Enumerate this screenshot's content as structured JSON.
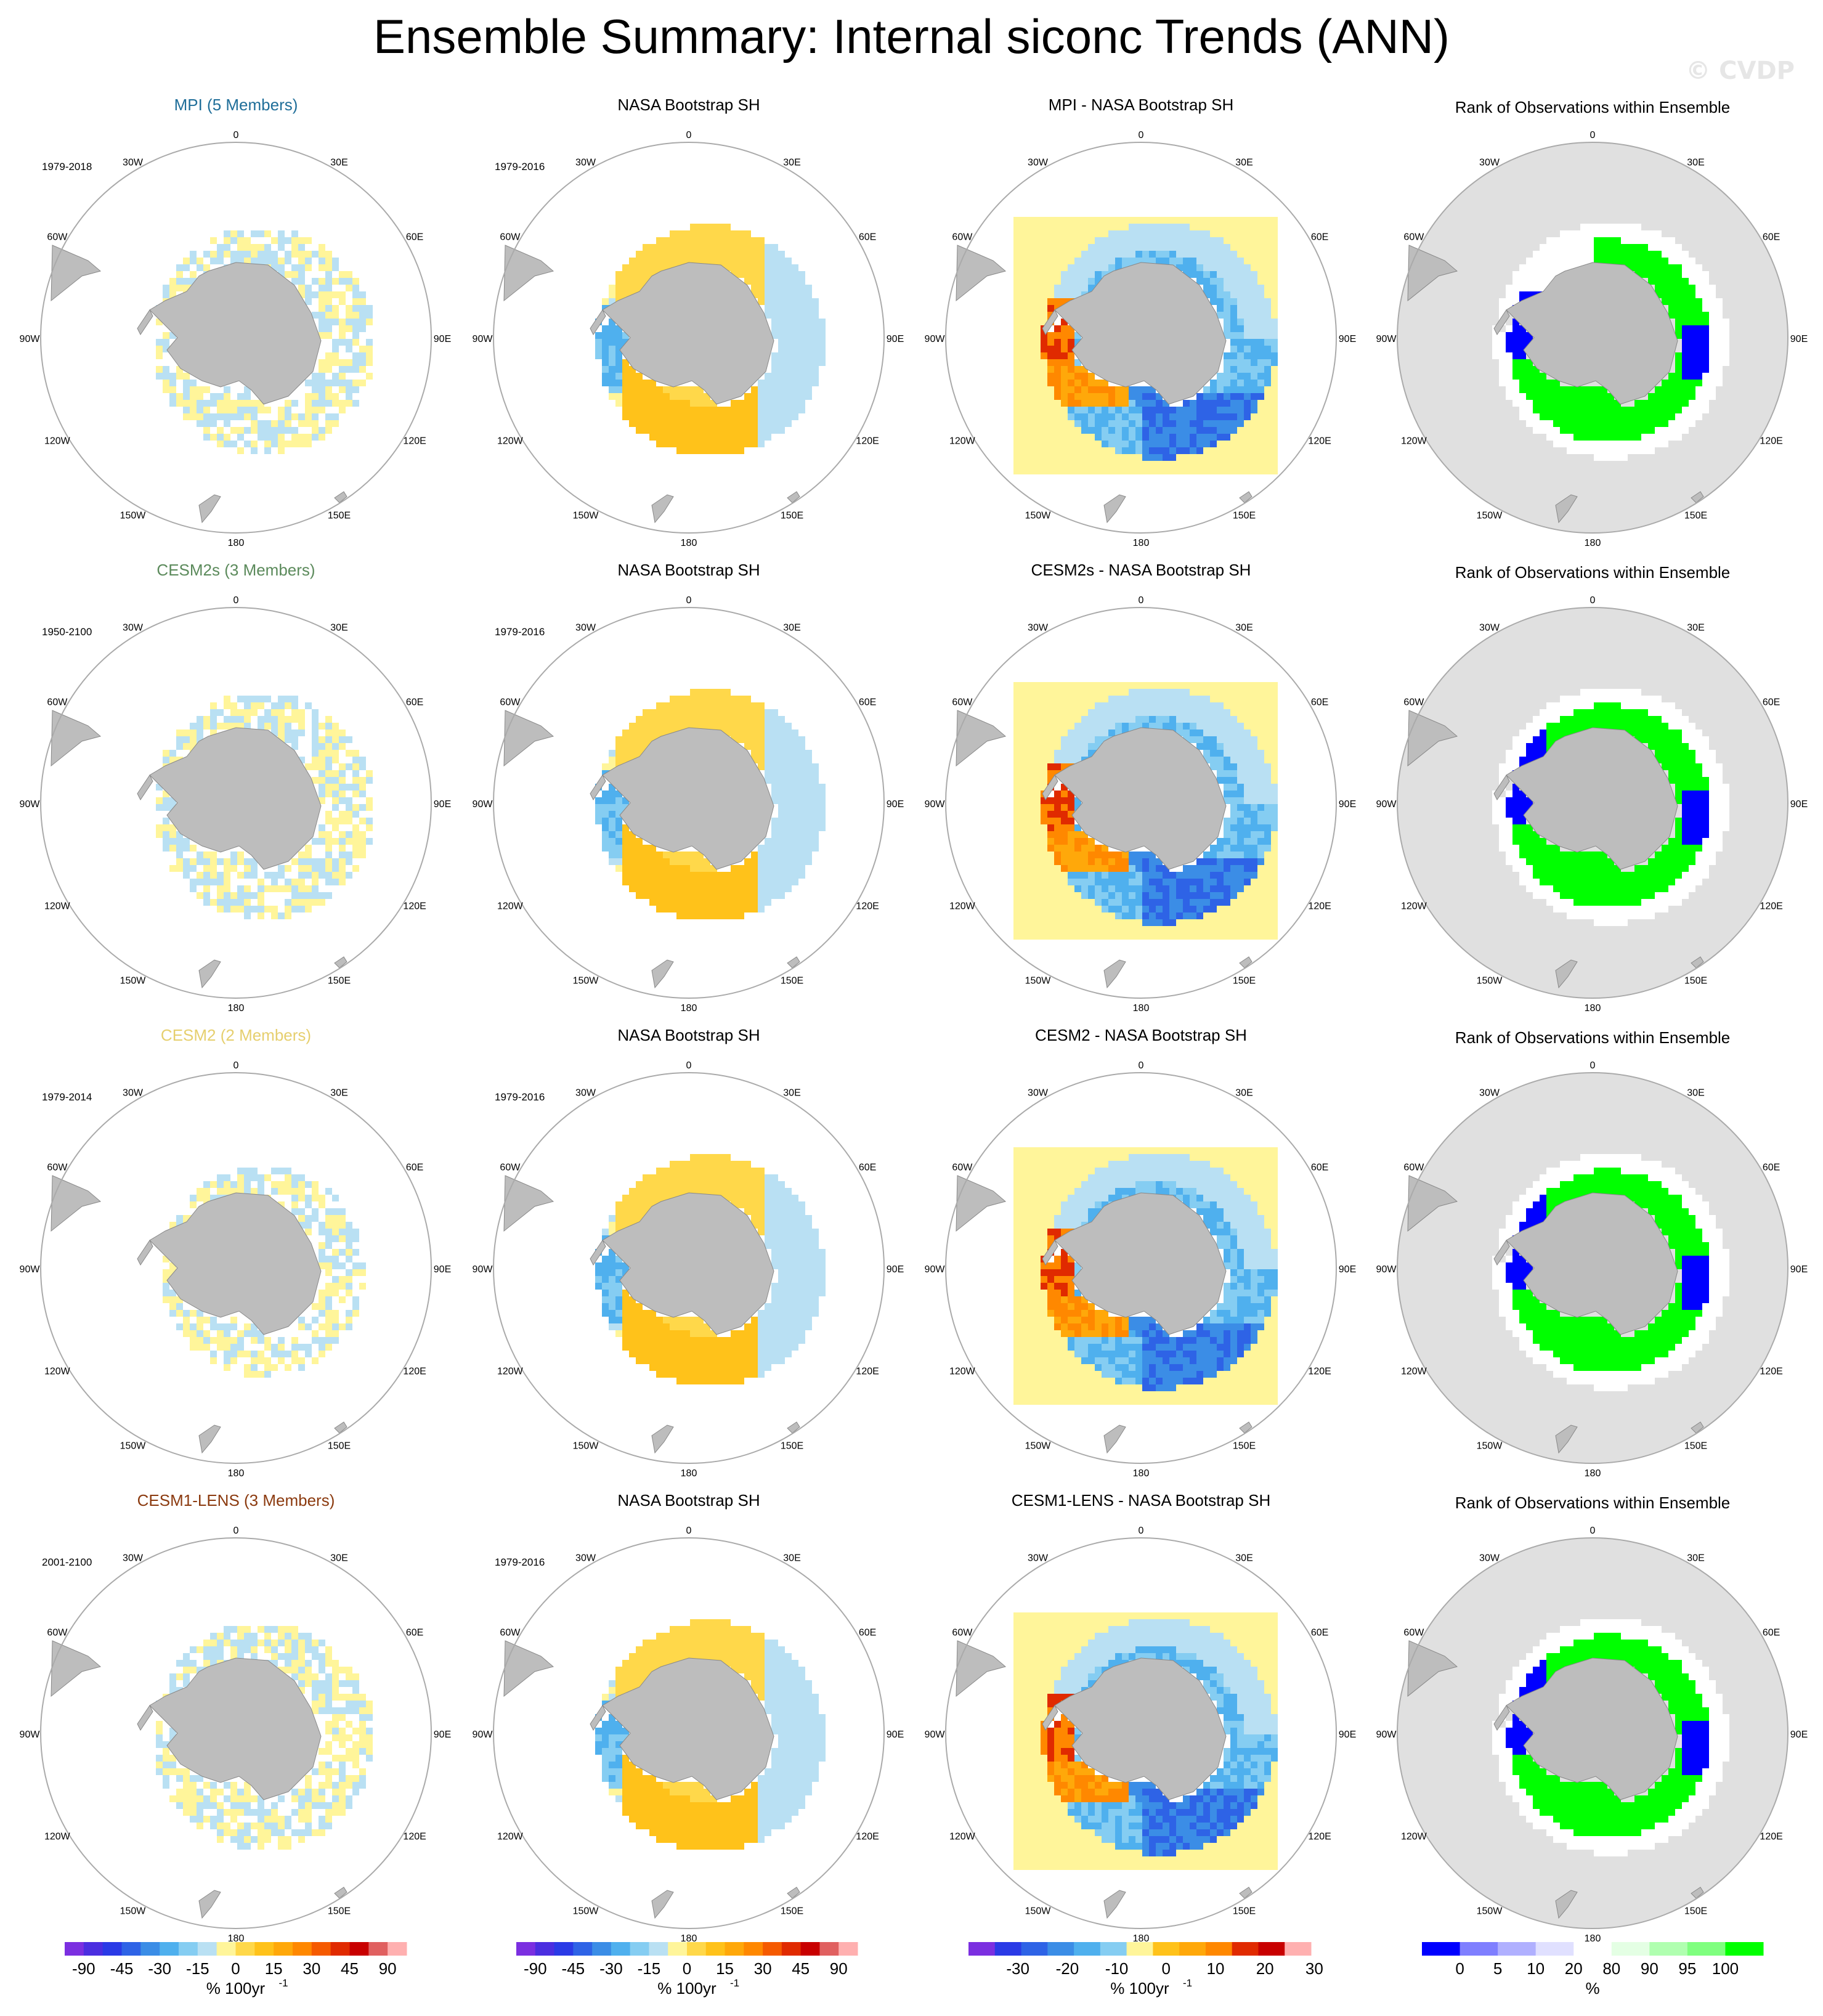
{
  "figure": {
    "title": "Ensemble Summary: Internal siconc Trends (ANN)",
    "watermark": "© CVDP"
  },
  "colors": {
    "land": "#bdbdbd",
    "circle": "#aaaaaa",
    "rank_background": "#e0e0e0",
    "model_title_colors": [
      "#1f6e99",
      "#5b8a5b",
      "#e6cf6e",
      "#8b3a0f"
    ]
  },
  "map_labels": {
    "lon": [
      "0",
      "30E",
      "60E",
      "90E",
      "120E",
      "150E",
      "180",
      "150W",
      "120W",
      "90W",
      "60W",
      "30W"
    ]
  },
  "chart_data": {
    "type": "heatmap",
    "projection": "south-polar-stereographic",
    "variable": "siconc",
    "season": "ANN",
    "rows": [
      {
        "model_title": "MPI (5 Members)",
        "model_years": "1979-2018",
        "obs_title": "NASA Bootstrap SH",
        "obs_years": "1979-2016",
        "diff_title": "MPI - NASA Bootstrap SH",
        "rank_title": "Rank of Observations within Ensemble"
      },
      {
        "model_title": "CESM2s (3 Members)",
        "model_years": "1950-2100",
        "obs_title": "NASA Bootstrap SH",
        "obs_years": "1979-2016",
        "diff_title": "CESM2s - NASA Bootstrap SH",
        "rank_title": "Rank of Observations within Ensemble"
      },
      {
        "model_title": "CESM2 (2 Members)",
        "model_years": "1979-2014",
        "obs_title": "NASA Bootstrap SH",
        "obs_years": "1979-2016",
        "diff_title": "CESM2 - NASA Bootstrap SH",
        "rank_title": "Rank of Observations within Ensemble"
      },
      {
        "model_title": "CESM1-LENS (3 Members)",
        "model_years": "2001-2100",
        "obs_title": "NASA Bootstrap SH",
        "obs_years": "1979-2016",
        "diff_title": "CESM1-LENS - NASA Bootstrap SH",
        "rank_title": "Rank of Observations within Ensemble"
      }
    ],
    "colorbars": [
      {
        "label": "% 100yr",
        "label_sup": "-1",
        "ticks": [
          "-90",
          "-45",
          "-30",
          "-15",
          "0",
          "15",
          "30",
          "45",
          "90"
        ],
        "colors": [
          "#7b2fe0",
          "#4b2ee0",
          "#2a3ae6",
          "#2e63e6",
          "#3b8de6",
          "#4fb0ee",
          "#85cdf2",
          "#b9e0f3",
          "#fff59a",
          "#ffd84a",
          "#ffc21a",
          "#ffa80a",
          "#ff8800",
          "#f55a00",
          "#e02a00",
          "#c80000",
          "#e06060",
          "#ffb0b0"
        ]
      },
      {
        "label": "% 100yr",
        "label_sup": "-1",
        "ticks": [
          "-90",
          "-45",
          "-30",
          "-15",
          "0",
          "15",
          "30",
          "45",
          "90"
        ],
        "colors": [
          "#7b2fe0",
          "#4b2ee0",
          "#2a3ae6",
          "#2e63e6",
          "#3b8de6",
          "#4fb0ee",
          "#85cdf2",
          "#b9e0f3",
          "#fff59a",
          "#ffd84a",
          "#ffc21a",
          "#ffa80a",
          "#ff8800",
          "#f55a00",
          "#e02a00",
          "#c80000",
          "#e06060",
          "#ffb0b0"
        ]
      },
      {
        "label": "% 100yr",
        "label_sup": "-1",
        "ticks": [
          "-30",
          "-20",
          "-10",
          "0",
          "10",
          "20",
          "30"
        ],
        "colors": [
          "#7b2fe0",
          "#2a3ae6",
          "#2e63e6",
          "#3b8de6",
          "#4fb0ee",
          "#85cdf2",
          "#fff59a",
          "#ffc21a",
          "#ffa80a",
          "#ff8800",
          "#e02a00",
          "#c80000",
          "#ffb0b0"
        ]
      },
      {
        "label": "%",
        "label_sup": "",
        "ticks": [
          "0",
          "5",
          "10",
          "20",
          "80",
          "90",
          "95",
          "100"
        ],
        "colors": [
          "#0000ff",
          "#7f7fff",
          "#b0b0ff",
          "#e0e0ff",
          "#ffffff",
          "#e4ffe4",
          "#b0ffb0",
          "#7fff7f",
          "#00ff00"
        ]
      }
    ]
  }
}
